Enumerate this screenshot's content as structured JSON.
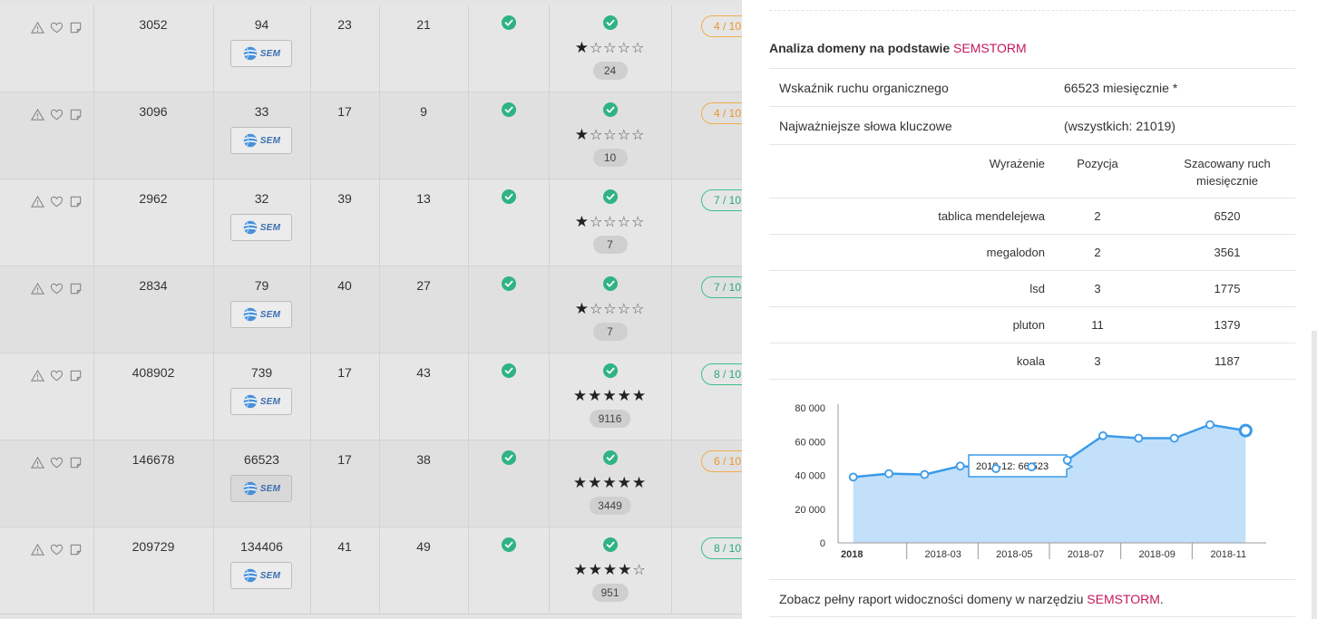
{
  "table": {
    "rows": [
      {
        "id": "3052",
        "col2": "94",
        "col3": "23",
        "col4": "21",
        "stars": 1,
        "count": "24",
        "score": "4 / 10",
        "score_color": "orange",
        "sem_label": "SEM"
      },
      {
        "id": "3096",
        "col2": "33",
        "col3": "17",
        "col4": "9",
        "stars": 1,
        "count": "10",
        "score": "4 / 10",
        "score_color": "orange",
        "sem_label": "SEM"
      },
      {
        "id": "2962",
        "col2": "32",
        "col3": "39",
        "col4": "13",
        "stars": 1,
        "count": "7",
        "score": "7 / 10",
        "score_color": "green",
        "sem_label": "SEM"
      },
      {
        "id": "2834",
        "col2": "79",
        "col3": "40",
        "col4": "27",
        "stars": 1,
        "count": "7",
        "score": "7 / 10",
        "score_color": "green",
        "sem_label": "SEM"
      },
      {
        "id": "408902",
        "col2": "739",
        "col3": "17",
        "col4": "43",
        "stars": 5,
        "count": "9116",
        "score": "8 / 10",
        "score_color": "green",
        "sem_label": "SEM"
      },
      {
        "id": "146678",
        "col2": "66523",
        "col3": "17",
        "col4": "38",
        "stars": 5,
        "count": "3449",
        "score": "6 / 10",
        "score_color": "orange",
        "sem_label": "SEM"
      },
      {
        "id": "209729",
        "col2": "134406",
        "col3": "41",
        "col4": "49",
        "stars": 4,
        "count": "951",
        "score": "8 / 10",
        "score_color": "green",
        "sem_label": "SEM"
      }
    ],
    "icons": [
      "warning-icon",
      "heart-icon",
      "note-icon"
    ]
  },
  "panel": {
    "title_prefix": "Analiza domeny na podstawie ",
    "title_brand": "SEMSTORM",
    "organic_label": "Wskaźnik ruchu organicznego",
    "organic_value": "66523 miesięcznie *",
    "keywords_label": "Najważniejsze słowa kluczowe",
    "keywords_value": "(wszystkich: 21019)",
    "kw_headers": {
      "term": "Wyrażenie",
      "position": "Pozycja",
      "traffic_line1": "Szacowany ruch",
      "traffic_line2": "miesięcznie"
    },
    "keywords": [
      {
        "term": "tablica mendelejewa",
        "position": "2",
        "traffic": "6520"
      },
      {
        "term": "megalodon",
        "position": "2",
        "traffic": "3561"
      },
      {
        "term": "lsd",
        "position": "3",
        "traffic": "1775"
      },
      {
        "term": "pluton",
        "position": "11",
        "traffic": "1379"
      },
      {
        "term": "koala",
        "position": "3",
        "traffic": "1187"
      }
    ],
    "footer_prefix": "Zobacz pełny raport widoczności domeny w narzędziu ",
    "footer_link": "SEMSTORM",
    "footer_suffix": "."
  },
  "chart_data": {
    "type": "area",
    "x": [
      "2018-01",
      "2018-02",
      "2018-03",
      "2018-04",
      "2018-05",
      "2018-06",
      "2018-07",
      "2018-08",
      "2018-09",
      "2018-10",
      "2018-11",
      "2018-12"
    ],
    "values": [
      39000,
      41000,
      40500,
      45500,
      44000,
      45000,
      49000,
      63500,
      62000,
      62000,
      70000,
      66523
    ],
    "x_tick_labels": [
      {
        "x": "2018-01",
        "label": "2018",
        "bold": true
      },
      {
        "x": "2018-03",
        "label": "2018-03"
      },
      {
        "x": "2018-05",
        "label": "2018-05"
      },
      {
        "x": "2018-07",
        "label": "2018-07"
      },
      {
        "x": "2018-09",
        "label": "2018-09"
      },
      {
        "x": "2018-11",
        "label": "2018-11"
      }
    ],
    "y_ticks": [
      "0",
      "20 000",
      "40 000",
      "60 000",
      "80 000"
    ],
    "ylim": [
      0,
      80000
    ],
    "tooltip": "2018-12: 66 523",
    "line_color": "#3c9ae8",
    "fill_color": "#c3e0fa",
    "title": "",
    "xlabel": "",
    "ylabel": ""
  }
}
